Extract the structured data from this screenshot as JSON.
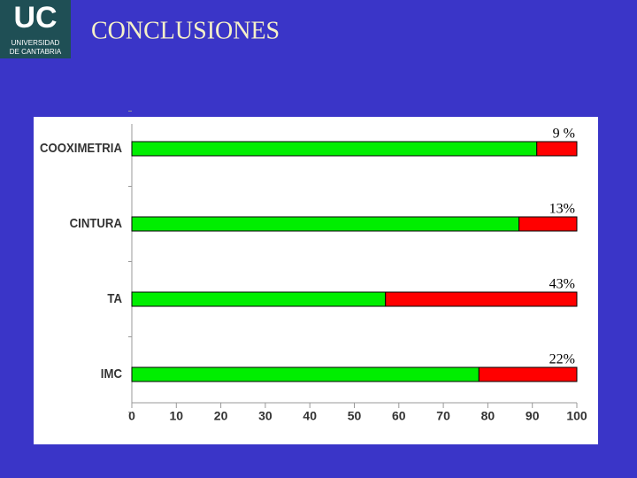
{
  "header": {
    "logo_mark": "UC",
    "logo_lines": [
      "UNIVERSIDAD",
      "DE CANTABRIA"
    ],
    "title": "CONCLUSIONES"
  },
  "chart_data": {
    "type": "stacked-barh",
    "categories": [
      "COOXIMETRIA",
      "CINTURA",
      "TA",
      "IMC"
    ],
    "series": [
      {
        "color": "#00ee00",
        "values": [
          91,
          87,
          57,
          78
        ]
      },
      {
        "color": "#ff0000",
        "values": [
          9,
          13,
          43,
          22
        ],
        "value_labels": [
          "9 %",
          "13%",
          "43%",
          "22%"
        ]
      }
    ],
    "xlim": [
      0,
      100
    ],
    "xticks": [
      0,
      10,
      20,
      30,
      40,
      50,
      60,
      70,
      80,
      90,
      100
    ]
  }
}
